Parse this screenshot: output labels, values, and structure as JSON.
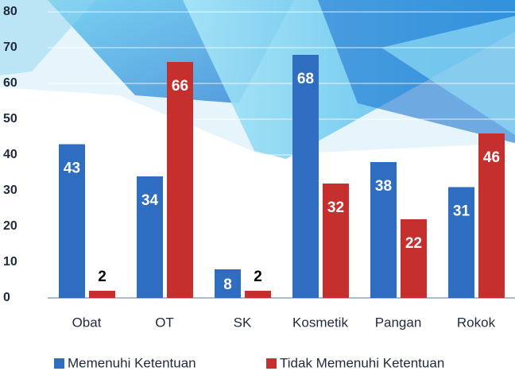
{
  "chart_data": {
    "type": "bar",
    "categories": [
      "Obat",
      "OT",
      "SK",
      "Kosmetik",
      "Pangan",
      "Rokok"
    ],
    "series": [
      {
        "name": "Memenuhi Ketentuan",
        "color": "#2f6dc0",
        "values": [
          43,
          34,
          8,
          68,
          38,
          31
        ]
      },
      {
        "name": "Tidak Memenuhi Ketentuan",
        "color": "#c5302f",
        "values": [
          2,
          66,
          2,
          32,
          22,
          46
        ]
      }
    ],
    "ylim": [
      0,
      80
    ],
    "yticks": [
      0,
      10,
      20,
      30,
      40,
      50,
      60,
      70,
      80
    ],
    "grid": true,
    "legend": "bottom"
  }
}
